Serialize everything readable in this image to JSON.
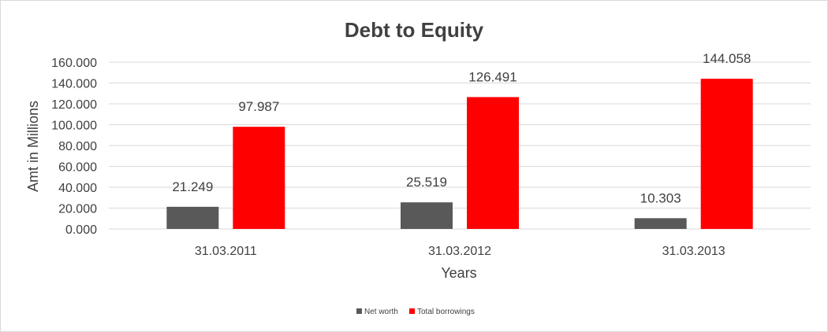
{
  "chart_data": {
    "type": "bar",
    "title": "Debt to Equity",
    "xlabel": "Years",
    "ylabel": "Amt in Millions",
    "categories": [
      "31.03.2011",
      "31.03.2012",
      "31.03.2013"
    ],
    "series": [
      {
        "name": "Net worth",
        "values": [
          21.249,
          25.519,
          10.303
        ],
        "color": "#595959"
      },
      {
        "name": "Total borrowings",
        "values": [
          97.987,
          126.491,
          144.058
        ],
        "color": "#ff0000"
      }
    ],
    "ylim": [
      0,
      160
    ],
    "yticks": [
      "0.000",
      "20.000",
      "40.000",
      "60.000",
      "80.000",
      "100.000",
      "120.000",
      "140.000",
      "160.000"
    ],
    "data_labels": [
      [
        "21.249",
        "25.519",
        "10.303"
      ],
      [
        "97.987",
        "126.491",
        "144.058"
      ]
    ],
    "grid": true,
    "legend_position": "bottom"
  }
}
